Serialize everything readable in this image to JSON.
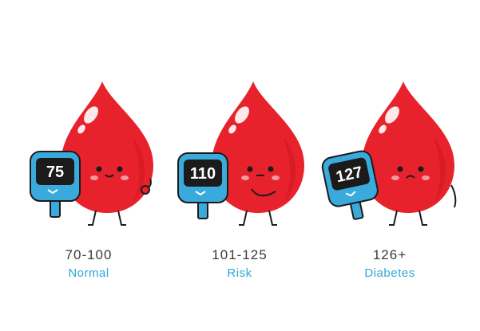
{
  "levels": [
    {
      "reading": "75",
      "range": "70-100",
      "label": "Normal",
      "mood": "happy"
    },
    {
      "reading": "110",
      "range": "101-125",
      "label": "Risk",
      "mood": "neutral"
    },
    {
      "reading": "127",
      "range": "126+",
      "label": "Diabetes",
      "mood": "sad"
    }
  ],
  "colors": {
    "drop": "#e8222d",
    "drop_shadow": "#c8141f",
    "meter_body": "#3aa9dc",
    "meter_dark": "#2788b8",
    "meter_screen": "#1b1b1b",
    "cheek": "#f29b9b",
    "label": "#2ea8d8",
    "range_text": "#3a3a3a"
  },
  "icons": [
    "blood-drop-icon",
    "glucose-meter-icon"
  ]
}
